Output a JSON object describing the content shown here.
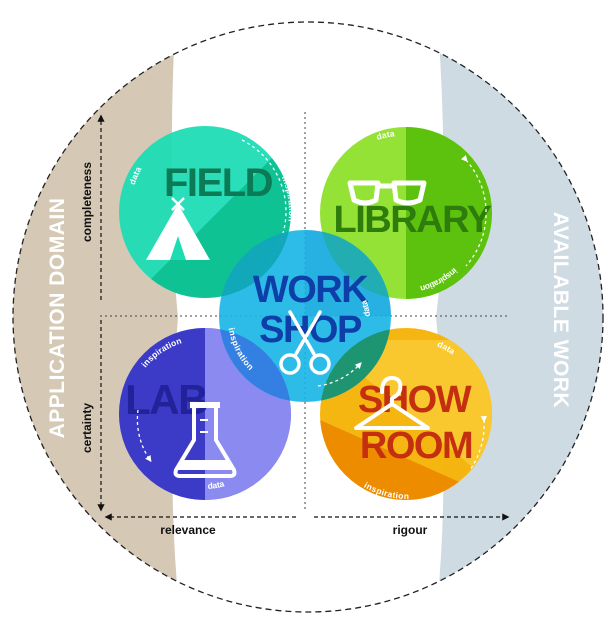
{
  "side_labels": {
    "left": "APPLICATION DOMAIN",
    "right": "AVAILABLE WORK"
  },
  "axes": {
    "top_left": "completeness",
    "bottom_left": "certainty",
    "bottom_left_x": "relevance",
    "bottom_right_x": "rigour"
  },
  "spaces": {
    "field": {
      "line1": "FIELD",
      "data": "data",
      "inspiration": "inspiration"
    },
    "library": {
      "line1": "LIBRARY",
      "data": "data",
      "inspiration": "inspiration"
    },
    "lab": {
      "line1": "LAB",
      "data": "data",
      "inspiration": "inspiration"
    },
    "showroom": {
      "line1": "SHOW",
      "line2": "ROOM",
      "data": "data",
      "inspiration": "inspiration"
    },
    "workshop": {
      "line1": "WORK",
      "line2": "SHOP",
      "data": "data",
      "inspiration": "inspiration"
    }
  },
  "icons": {
    "field": "tent-icon",
    "library": "glasses-icon",
    "lab": "flask-icon",
    "showroom": "hanger-icon",
    "workshop": "scissors-icon"
  },
  "colors": {
    "domain_band": "#d5c8b4",
    "work_band": "#cfdbe2",
    "field": "#1ddcb4",
    "library": "#7ed41c",
    "lab": "#6a6ae0",
    "showroom": "#f5b40a",
    "workshop": "#16b5e6"
  }
}
